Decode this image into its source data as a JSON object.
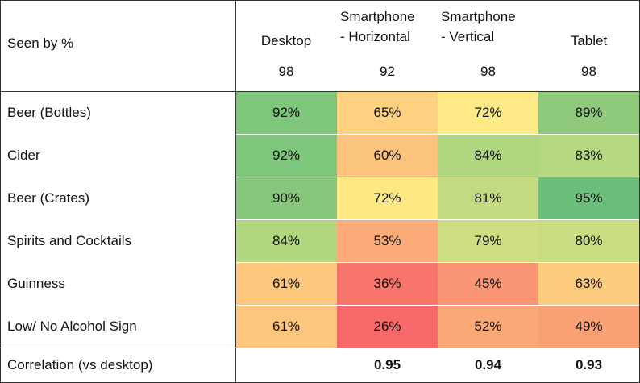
{
  "table": {
    "header": {
      "label": "Seen by %",
      "columns": [
        {
          "lines": [
            "Desktop"
          ],
          "base": "98"
        },
        {
          "lines": [
            "Smartphone",
            "- Horizontal"
          ],
          "base": "92"
        },
        {
          "lines": [
            "Smartphone",
            "- Vertical"
          ],
          "base": "98"
        },
        {
          "lines": [
            "Tablet"
          ],
          "base": "98"
        }
      ]
    },
    "rows": [
      {
        "label": "Beer (Bottles)",
        "cells": [
          "92%",
          "65%",
          "72%",
          "89%"
        ],
        "colors": [
          "#7dc67b",
          "#fdd17f",
          "#fde985",
          "#8ec97c"
        ]
      },
      {
        "label": "Cider",
        "cells": [
          "92%",
          "60%",
          "84%",
          "83%"
        ],
        "colors": [
          "#7dc67b",
          "#fcc37c",
          "#b1d680",
          "#b5d780"
        ]
      },
      {
        "label": "Beer (Crates)",
        "cells": [
          "90%",
          "72%",
          "81%",
          "95%"
        ],
        "colors": [
          "#87c77c",
          "#fee884",
          "#c4da81",
          "#6bbf7b"
        ]
      },
      {
        "label": "Spirits and Cocktails",
        "cells": [
          "84%",
          "53%",
          "79%",
          "80%"
        ],
        "colors": [
          "#b1d680",
          "#fbab77",
          "#cfdd82",
          "#cadc81"
        ]
      },
      {
        "label": "Guinness",
        "cells": [
          "61%",
          "36%",
          "45%",
          "63%"
        ],
        "colors": [
          "#fcc67c",
          "#f8756b",
          "#fa9673",
          "#fdcb7d"
        ]
      },
      {
        "label": "Low/ No Alcohol Sign",
        "cells": [
          "61%",
          "26%",
          "52%",
          "49%"
        ],
        "colors": [
          "#fcc67c",
          "#f8696b",
          "#fba877",
          "#faa075"
        ]
      }
    ],
    "footer": {
      "label": "Correlation (vs desktop)",
      "cells": [
        null,
        "0.95",
        "0.94",
        "0.93"
      ]
    }
  }
}
